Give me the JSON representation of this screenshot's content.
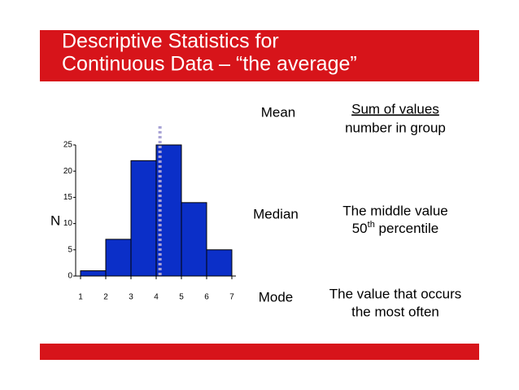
{
  "header": {
    "title_lines": [
      "Descriptive Statistics for",
      "Continuous Data – “the average”"
    ]
  },
  "definitions": [
    {
      "term": "Mean",
      "lines": [
        "Sum of values",
        "number in group"
      ]
    },
    {
      "term": "Median",
      "lines": [
        "The middle value"
      ],
      "ordinal": {
        "number": "50",
        "suffix": "th",
        "rest": " percentile"
      }
    },
    {
      "term": "Mode",
      "lines": [
        "The value that occurs",
        "the most often"
      ]
    }
  ],
  "chart_data": {
    "type": "histogram",
    "bins": [
      1,
      2,
      3,
      4,
      5,
      6,
      7
    ],
    "values": [
      1,
      7,
      22,
      25,
      14,
      5
    ],
    "color": "#0b2fc8",
    "ylabel": "N",
    "xlim": [
      1,
      7
    ],
    "xticks": [
      1,
      2,
      3,
      4,
      5,
      6,
      7
    ],
    "ylim": [
      0,
      25
    ],
    "yticks": [
      0,
      5,
      10,
      15,
      20,
      25
    ],
    "mean_line": 4.15,
    "mean_line_color": "#a9a3d6"
  }
}
